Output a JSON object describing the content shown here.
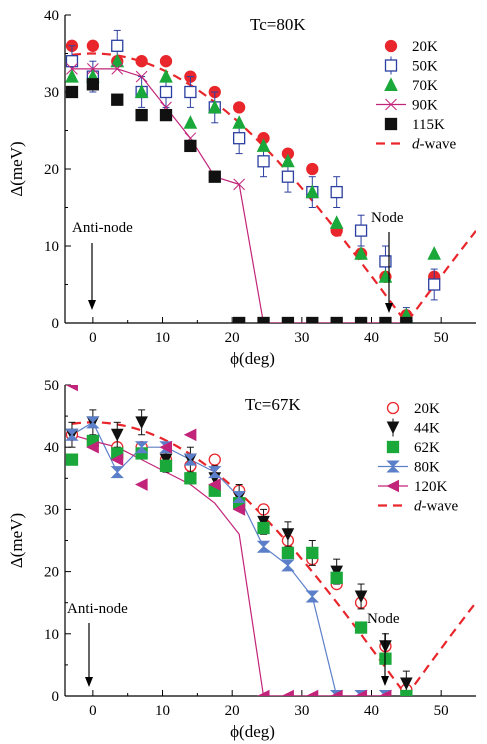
{
  "chart_data": [
    {
      "type": "scatter",
      "title": "Tc=80K",
      "xlabel": "ϕ(deg)",
      "ylabel": "Δ(meV)",
      "xlim": [
        -4,
        55
      ],
      "ylim": [
        0,
        40
      ],
      "xticks": [
        0,
        10,
        20,
        30,
        40,
        50
      ],
      "yticks": [
        0,
        10,
        20,
        30,
        40
      ],
      "legend_position": "top-right",
      "series": [
        {
          "name": "20K",
          "marker": "circle",
          "filled": true,
          "color": "#e8262b",
          "x": [
            -3,
            0,
            3.5,
            7,
            10.5,
            14,
            17.5,
            21,
            24.5,
            28,
            31.5,
            35,
            38.5,
            42,
            45,
            49
          ],
          "y": [
            36,
            36,
            34,
            34,
            34,
            32,
            30,
            28,
            24,
            22,
            20,
            12,
            9,
            6,
            1,
            6
          ]
        },
        {
          "name": "50K",
          "marker": "square",
          "filled": false,
          "color": "#2b3fa0",
          "x": [
            -3,
            0,
            3.5,
            7,
            10.5,
            14,
            17.5,
            21,
            24.5,
            28,
            31.5,
            35,
            38.5,
            42,
            45,
            49
          ],
          "y": [
            34,
            32,
            36,
            30,
            30,
            30,
            28,
            24,
            21,
            19,
            17,
            17,
            12,
            8,
            0,
            5
          ],
          "errors": [
            2,
            2,
            2,
            2,
            2,
            2,
            2,
            2,
            2,
            2,
            2,
            2,
            2,
            2,
            2,
            2
          ]
        },
        {
          "name": "70K",
          "marker": "triangle",
          "filled": true,
          "color": "#1aa83a",
          "x": [
            -3,
            0,
            3.5,
            7,
            10.5,
            14,
            17.5,
            21,
            24.5,
            28,
            31.5,
            35,
            38.5,
            42,
            45,
            49
          ],
          "y": [
            32,
            32,
            34,
            30,
            32,
            26,
            28,
            26,
            23,
            21,
            17,
            13,
            9,
            6,
            1,
            9
          ]
        },
        {
          "name": "90K",
          "marker": "bowtie",
          "filled": true,
          "color": "#c2247a",
          "connect": true,
          "x": [
            -3,
            0,
            3.5,
            7,
            10.5,
            14,
            17.5,
            21,
            24.5,
            28,
            31.5,
            35,
            38.5,
            42,
            45
          ],
          "y": [
            33,
            33,
            33,
            32,
            28,
            24,
            19,
            18,
            0,
            0,
            0,
            0,
            0,
            0,
            0
          ]
        },
        {
          "name": "115K",
          "marker": "square",
          "filled": true,
          "color": "#111111",
          "x": [
            -3,
            0,
            3.5,
            7,
            10.5,
            14,
            17.5,
            21,
            24.5,
            28,
            31.5,
            35,
            38.5,
            42,
            45
          ],
          "y": [
            30,
            31,
            29,
            27,
            27,
            23,
            19,
            0,
            0,
            0,
            0,
            0,
            0,
            0,
            0
          ]
        },
        {
          "name": "d-wave",
          "line": "dashed",
          "color": "#e8262b",
          "x": [
            -3,
            45,
            55
          ],
          "amplitude": 35,
          "node_deg": 45
        }
      ],
      "annotations": [
        {
          "text": "Anti-node",
          "x": 0,
          "y": 12
        },
        {
          "text": "Node",
          "x": 45,
          "y": 12
        }
      ]
    },
    {
      "type": "scatter",
      "title": "Tc=67K",
      "xlabel": "ϕ(deg)",
      "ylabel": "Δ(meV)",
      "xlim": [
        -4,
        55
      ],
      "ylim": [
        0,
        50
      ],
      "xticks": [
        0,
        10,
        20,
        30,
        40,
        50
      ],
      "yticks": [
        0,
        10,
        20,
        30,
        40,
        50
      ],
      "legend_position": "top-right",
      "series": [
        {
          "name": "20K",
          "marker": "circle",
          "filled": false,
          "color": "#e8262b",
          "x": [
            -3,
            0,
            3.5,
            7,
            10.5,
            14,
            17.5,
            21,
            24.5,
            28,
            31.5,
            35,
            38.5,
            42,
            45
          ],
          "y": [
            42,
            41,
            40,
            40,
            38,
            37,
            38,
            33,
            30,
            25,
            22,
            18,
            15,
            8,
            1
          ]
        },
        {
          "name": "44K",
          "marker": "triangle-down",
          "filled": true,
          "color": "#111111",
          "x": [
            -3,
            0,
            3.5,
            7,
            10.5,
            14,
            17.5,
            21,
            24.5,
            28,
            31.5,
            35,
            38.5,
            42,
            45
          ],
          "y": [
            42,
            44,
            42,
            44,
            38,
            38,
            35,
            32,
            28,
            26,
            23,
            20,
            16,
            8,
            2
          ],
          "errors": [
            2,
            2,
            2,
            2,
            2,
            2,
            2,
            2,
            2,
            2,
            2,
            2,
            2,
            2,
            2
          ]
        },
        {
          "name": "62K",
          "marker": "square",
          "filled": true,
          "color": "#1aa83a",
          "x": [
            -3,
            0,
            3.5,
            7,
            10.5,
            14,
            17.5,
            21,
            24.5,
            28,
            31.5,
            35,
            38.5,
            42,
            45
          ],
          "y": [
            38,
            41,
            39,
            39,
            37,
            35,
            33,
            31,
            27,
            23,
            23,
            19,
            11,
            6,
            0
          ]
        },
        {
          "name": "80K",
          "marker": "hourglass",
          "filled": true,
          "color": "#5b7fc9",
          "connect": true,
          "x": [
            -3,
            0,
            3.5,
            7,
            10.5,
            14,
            17.5,
            21,
            24.5,
            28,
            31.5,
            35,
            38.5,
            42
          ],
          "y": [
            42,
            44,
            36,
            40,
            40,
            38,
            36,
            32,
            24,
            21,
            16,
            0,
            0,
            0
          ]
        },
        {
          "name": "120K",
          "marker": "triangle-left",
          "filled": true,
          "color": "#c2247a",
          "connect": true,
          "x": [
            -3,
            0,
            3.5,
            7,
            10.5,
            14,
            17.5,
            21,
            24.5,
            28,
            31.5,
            35,
            38.5,
            42
          ],
          "y": [
            50,
            40,
            38,
            34,
            40,
            42,
            34,
            30,
            0,
            0,
            0,
            0,
            0,
            0
          ],
          "curve_y": [
            42,
            41,
            40,
            38,
            36,
            34,
            31,
            26,
            0,
            0,
            0,
            0,
            0,
            0
          ]
        },
        {
          "name": "d-wave",
          "line": "dashed",
          "color": "#e8262b",
          "x": [
            -3,
            45,
            55
          ],
          "amplitude": 44,
          "node_deg": 45
        }
      ],
      "annotations": [
        {
          "text": "Anti-node",
          "x": 0,
          "y": 12
        },
        {
          "text": "Node",
          "x": 45,
          "y": 12
        }
      ]
    }
  ],
  "legend_dwave": {
    "italic": "d",
    "rest": "-wave"
  }
}
